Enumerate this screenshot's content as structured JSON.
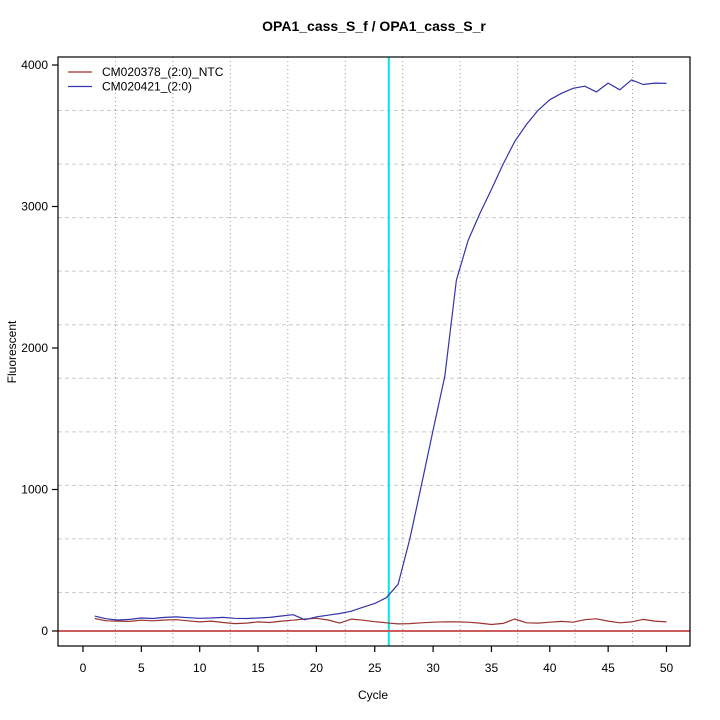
{
  "chart_data": {
    "type": "line",
    "title": "OPA1_cass_S_f / OPA1_cass_S_r",
    "xlabel": "Cycle",
    "ylabel": "Fluorescent",
    "x_ticks": [
      0,
      5,
      10,
      15,
      20,
      25,
      30,
      35,
      40,
      45,
      50
    ],
    "y_ticks": [
      0,
      1000,
      2000,
      3000,
      4000
    ],
    "xlim": [
      -2.1,
      52
    ],
    "ylim": [
      -106,
      4058
    ],
    "grid": {
      "internal_lines_each_axis": 10,
      "note": "equally spaced light gridlines, not aligned to axis ticks",
      "h_color": "#cccccc",
      "v_color": "#999999"
    },
    "x": [
      1,
      2,
      3,
      4,
      5,
      6,
      7,
      8,
      9,
      10,
      11,
      12,
      13,
      14,
      15,
      16,
      17,
      18,
      19,
      20,
      21,
      22,
      23,
      24,
      25,
      26,
      27,
      28,
      29,
      30,
      31,
      32,
      33,
      34,
      35,
      36,
      37,
      38,
      39,
      40,
      41,
      42,
      43,
      44,
      45,
      46,
      47,
      48,
      49,
      50
    ],
    "series": [
      {
        "name": "CM020378_(2:0)_NTC",
        "color": "#9b3232",
        "values": [
          88,
          72,
          70,
          68,
          76,
          72,
          78,
          80,
          72,
          64,
          70,
          60,
          52,
          56,
          64,
          60,
          70,
          76,
          85,
          90,
          78,
          56,
          84,
          76,
          66,
          58,
          50,
          52,
          58,
          62,
          65,
          64,
          62,
          56,
          46,
          54,
          85,
          58,
          56,
          62,
          68,
          62,
          80,
          86,
          70,
          58,
          64,
          82,
          70,
          64
        ]
      },
      {
        "name": "CM020421_(2:0)",
        "color": "#3434ab",
        "values": [
          105,
          86,
          78,
          82,
          92,
          88,
          96,
          100,
          94,
          90,
          92,
          96,
          90,
          88,
          92,
          96,
          106,
          115,
          80,
          100,
          112,
          124,
          140,
          168,
          195,
          235,
          330,
          650,
          1030,
          1420,
          1800,
          2480,
          2760,
          2950,
          3120,
          3300,
          3460,
          3580,
          3680,
          3755,
          3800,
          3835,
          3850,
          3810,
          3872,
          3825,
          3895,
          3862,
          3872,
          3870
        ]
      }
    ],
    "threshold_line": {
      "value": 0,
      "color": "#cd5c5c"
    },
    "ct_marker_line": {
      "cycle": 26.2,
      "color": "#00e6e6"
    },
    "legend": {
      "position": "top-left"
    },
    "axis_color": "#000000",
    "background": "#ffffff"
  }
}
